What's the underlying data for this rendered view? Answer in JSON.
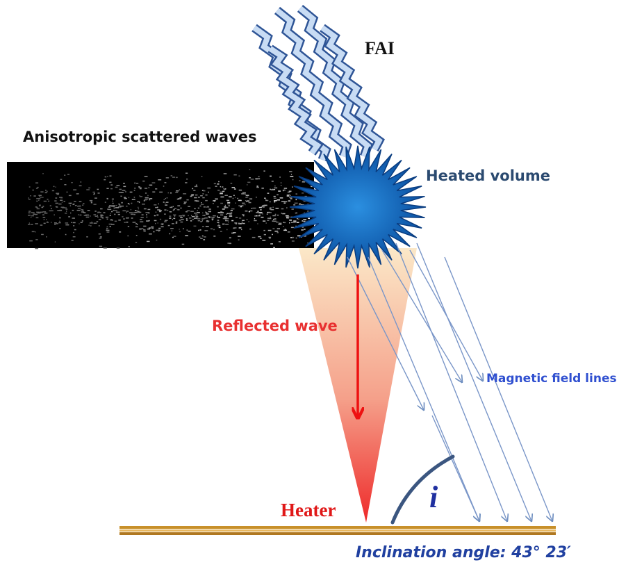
{
  "labels": {
    "fai": "FAI",
    "scattered": "Anisotropic scattered waves",
    "heated": "Heated volume",
    "reflected": "Reflected wave",
    "magnetic": "Magnetic field lines",
    "heater": "Heater",
    "angle_symbol": "i",
    "inclination": "Inclination angle: 43° 23′"
  }
}
